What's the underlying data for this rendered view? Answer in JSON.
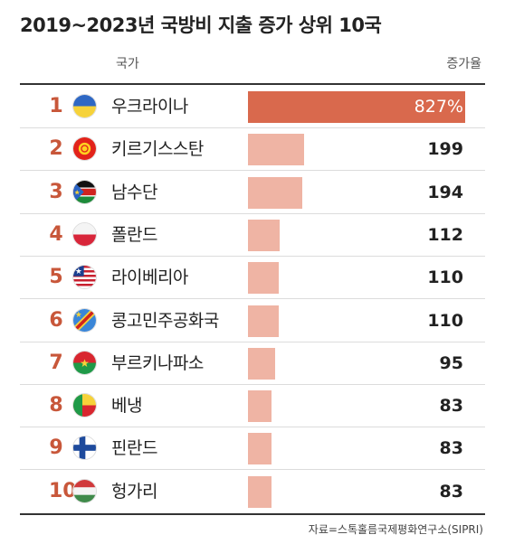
{
  "title": "2019~2023년 국방비 지출 증가 상위 10국",
  "header": {
    "country": "국가",
    "rate": "증가율"
  },
  "source": "자료=스톡홀름국제평화연구소(SIPRI)",
  "chart_data": {
    "type": "bar",
    "orientation": "horizontal",
    "title": "2019~2023년 국방비 지출 증가 상위 10국",
    "xlabel": "증가율",
    "ylabel": "국가",
    "unit": "%",
    "categories": [
      "우크라이나",
      "키르기스스탄",
      "남수단",
      "폴란드",
      "라이베리아",
      "콩고민주공화국",
      "부르키나파소",
      "베냉",
      "핀란드",
      "헝가리"
    ],
    "values": [
      827,
      199,
      194,
      112,
      110,
      110,
      95,
      83,
      83,
      83
    ],
    "value_labels": [
      "827%",
      "199",
      "194",
      "112",
      "110",
      "110",
      "95",
      "83",
      "83",
      "83"
    ],
    "ranks": [
      "1",
      "2",
      "3",
      "4",
      "5",
      "6",
      "7",
      "8",
      "9",
      "10"
    ],
    "flags": [
      "ukraine-flag",
      "kyrgyzstan-flag",
      "south-sudan-flag",
      "poland-flag",
      "liberia-flag",
      "dr-congo-flag",
      "burkina-faso-flag",
      "benin-flag",
      "finland-flag",
      "hungary-flag"
    ],
    "colors": {
      "top": "#d9694d",
      "other": "#efb4a4",
      "rank": "#c8573a"
    }
  }
}
